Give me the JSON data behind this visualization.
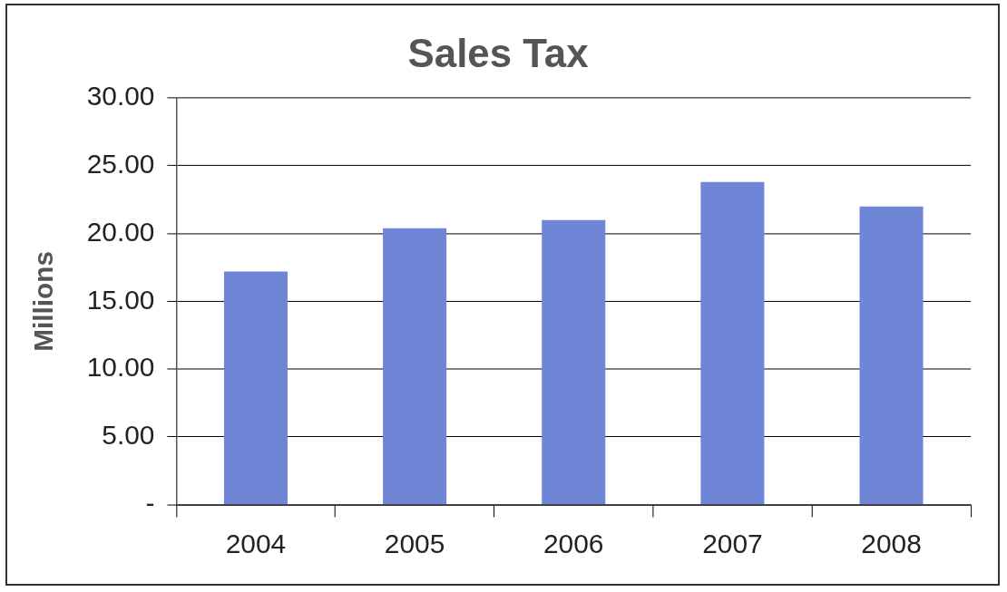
{
  "chart_data": {
    "type": "bar",
    "title": "Sales Tax",
    "ylabel": "Millions",
    "categories": [
      "2004",
      "2005",
      "2006",
      "2007",
      "2008"
    ],
    "values": [
      17.2,
      20.4,
      21.0,
      23.8,
      22.0
    ],
    "color": "#6f86d6",
    "ylim": [
      0,
      30
    ],
    "yticks": [
      {
        "value": 0,
        "label": "-"
      },
      {
        "value": 5,
        "label": "5.00"
      },
      {
        "value": 10,
        "label": "10.00"
      },
      {
        "value": 15,
        "label": "15.00"
      },
      {
        "value": 20,
        "label": "20.00"
      },
      {
        "value": 25,
        "label": "25.00"
      },
      {
        "value": 30,
        "label": "30.00"
      }
    ],
    "grid": "y",
    "legend": false
  }
}
